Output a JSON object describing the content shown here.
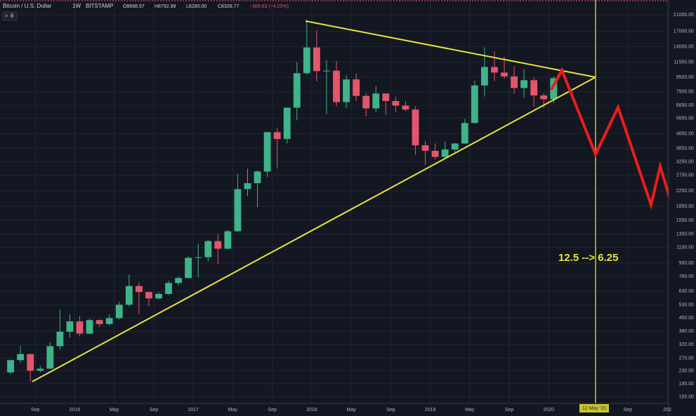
{
  "chart_data": {
    "type": "candlestick",
    "title": "Bitcoin / U.S. Dollar",
    "interval": "1W",
    "exchange": "BITSTAMP",
    "legend_values": [
      "O8698.97",
      "H8792.98",
      "L8280.00",
      "C8326.77",
      "−369.83 (−4.25%)"
    ],
    "indicator_button": "6",
    "annotation": "12.5 --> 6.25",
    "marker_label": "12 May '20",
    "up_color": "#3fb38a",
    "down_color": "#e4566b",
    "grid": true,
    "log_scale": true,
    "x": [
      "2015-06",
      "2015-07",
      "2015-08",
      "2015-09",
      "2015-10",
      "2015-11",
      "2015-12",
      "2016-01",
      "2016-02",
      "2016-03",
      "2016-04",
      "2016-05",
      "2016-06",
      "2016-07",
      "2016-08",
      "2016-09",
      "2016-10",
      "2016-11",
      "2016-12",
      "2017-01",
      "2017-02",
      "2017-03",
      "2017-04",
      "2017-05",
      "2017-06",
      "2017-07",
      "2017-08",
      "2017-09",
      "2017-10",
      "2017-11",
      "2017-12",
      "2018-01",
      "2018-02",
      "2018-03",
      "2018-04",
      "2018-05",
      "2018-06",
      "2018-07",
      "2018-08",
      "2018-09",
      "2018-10",
      "2018-11",
      "2018-12",
      "2019-01",
      "2019-02",
      "2019-03",
      "2019-04",
      "2019-05",
      "2019-06",
      "2019-07",
      "2019-08",
      "2019-09",
      "2019-10",
      "2019-11",
      "2019-12",
      "2020-01"
    ],
    "open": [
      225,
      263,
      284,
      230,
      236,
      314,
      377,
      430,
      368,
      437,
      416,
      448,
      531,
      673,
      624,
      575,
      609,
      700,
      745,
      963,
      970,
      1190,
      1080,
      1348,
      2300,
      2480,
      2875,
      4735,
      4340,
      6460,
      10000,
      13860,
      10270,
      10330,
      6930,
      9240,
      7500,
      6400,
      7730,
      7030,
      6630,
      6310,
      4010,
      3740,
      3460,
      3800,
      4100,
      5320,
      8560,
      10820,
      10080,
      9600,
      8290,
      9150,
      7540,
      7190
    ],
    "high": [
      265,
      315,
      285,
      245,
      330,
      500,
      470,
      460,
      445,
      440,
      470,
      550,
      780,
      705,
      625,
      620,
      720,
      760,
      980,
      1150,
      1210,
      1300,
      1370,
      2790,
      2980,
      2920,
      4750,
      5000,
      6470,
      11500,
      19700,
      17200,
      11780,
      11700,
      9750,
      9990,
      7780,
      8500,
      7750,
      7410,
      7000,
      6550,
      4250,
      4110,
      4200,
      4130,
      5600,
      9100,
      13880,
      13200,
      12330,
      10950,
      10540,
      9500,
      7750,
      9580
    ],
    "low": [
      220,
      255,
      200,
      225,
      235,
      300,
      350,
      355,
      365,
      400,
      410,
      440,
      520,
      470,
      520,
      570,
      600,
      680,
      740,
      750,
      920,
      890,
      1070,
      1340,
      2100,
      1830,
      2680,
      2980,
      4100,
      5500,
      9800,
      9000,
      5950,
      6600,
      6430,
      7030,
      5780,
      6100,
      5880,
      6110,
      6180,
      3550,
      3130,
      3350,
      3390,
      3670,
      4090,
      5290,
      7440,
      9070,
      9320,
      7710,
      7310,
      6520,
      6430,
      6850
    ],
    "close": [
      263,
      284,
      230,
      236,
      314,
      377,
      430,
      368,
      437,
      416,
      448,
      531,
      673,
      624,
      575,
      609,
      700,
      745,
      963,
      970,
      1190,
      1080,
      1348,
      2300,
      2480,
      2875,
      4735,
      4340,
      6460,
      10000,
      13860,
      10270,
      10330,
      6930,
      9240,
      7500,
      6400,
      7730,
      7030,
      6630,
      6310,
      4010,
      3740,
      3460,
      3800,
      4100,
      5320,
      8560,
      10820,
      10080,
      9600,
      8290,
      9150,
      7540,
      7190,
      9390
    ],
    "xlim": [
      "2015-05",
      "2021-01"
    ],
    "xticks": [
      {
        "value": "2015-09",
        "label": "Sep"
      },
      {
        "value": "2016-01",
        "label": "2016"
      },
      {
        "value": "2016-05",
        "label": "May"
      },
      {
        "value": "2016-09",
        "label": "Sep"
      },
      {
        "value": "2017-01",
        "label": "2017"
      },
      {
        "value": "2017-05",
        "label": "May"
      },
      {
        "value": "2017-09",
        "label": "Sep"
      },
      {
        "value": "2018-01",
        "label": "2018"
      },
      {
        "value": "2018-05",
        "label": "May"
      },
      {
        "value": "2018-09",
        "label": "Sep"
      },
      {
        "value": "2019-01",
        "label": "2019"
      },
      {
        "value": "2019-05",
        "label": "May"
      },
      {
        "value": "2019-09",
        "label": "Sep"
      },
      {
        "value": "2020-01",
        "label": "2020"
      },
      {
        "value": "2020-09",
        "label": "Sep"
      },
      {
        "value": "2021-01",
        "label": "202"
      }
    ],
    "ylim": [
      152,
      25300
    ],
    "yticks": [
      {
        "value": 21000,
        "label": "21000.00"
      },
      {
        "value": 17000,
        "label": "17000.00"
      },
      {
        "value": 14000,
        "label": "14000.00"
      },
      {
        "value": 11500,
        "label": "11500.00"
      },
      {
        "value": 9500,
        "label": "9500.00"
      },
      {
        "value": 7900,
        "label": "7900.00"
      },
      {
        "value": 6650,
        "label": "6650.00"
      },
      {
        "value": 5650,
        "label": "5650.00"
      },
      {
        "value": 4650,
        "label": "4650.00"
      },
      {
        "value": 3850,
        "label": "3850.00"
      },
      {
        "value": 3250,
        "label": "3250.00"
      },
      {
        "value": 2750,
        "label": "2750.00"
      },
      {
        "value": 2250,
        "label": "2250.00"
      },
      {
        "value": 1850,
        "label": "1850.00"
      },
      {
        "value": 1550,
        "label": "1550.00"
      },
      {
        "value": 1300,
        "label": "1300.00"
      },
      {
        "value": 1100,
        "label": "1100.00"
      },
      {
        "value": 900,
        "label": "900.00"
      },
      {
        "value": 760,
        "label": "760.00"
      },
      {
        "value": 630,
        "label": "630.00"
      },
      {
        "value": 530,
        "label": "530.00"
      },
      {
        "value": 450,
        "label": "450.00"
      },
      {
        "value": 380,
        "label": "380.00"
      },
      {
        "value": 320,
        "label": "320.00"
      },
      {
        "value": 270,
        "label": "270.00"
      },
      {
        "value": 230,
        "label": "230.00"
      },
      {
        "value": 195,
        "label": "195.00"
      },
      {
        "value": 165,
        "label": "165.00"
      }
    ]
  }
}
